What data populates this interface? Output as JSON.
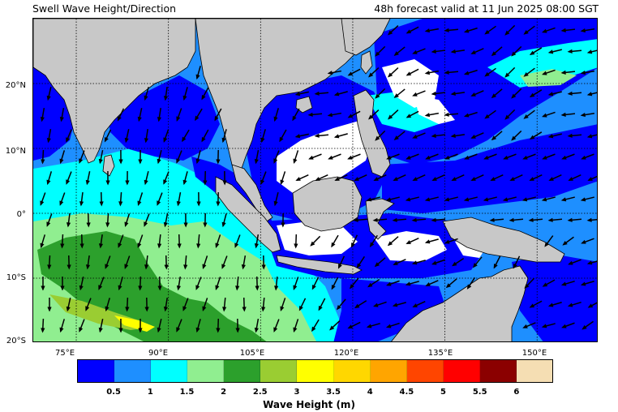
{
  "header": {
    "title_left": "Swell Wave Height/Direction",
    "title_right": "48h forecast valid at 11 Jun 2025 08:00 SGT"
  },
  "map": {
    "lon_range": [
      68,
      160
    ],
    "lat_range": [
      -20,
      30
    ],
    "lat_labels": [
      "20°N",
      "10°N",
      "0°",
      "10°S",
      "20°S"
    ],
    "lat_values": [
      20,
      10,
      0,
      -10,
      -20
    ],
    "lon_labels": [
      "75°E",
      "90°E",
      "105°E",
      "120°E",
      "135°E",
      "150°E"
    ],
    "lon_values": [
      75,
      90,
      105,
      120,
      135,
      150
    ],
    "land_color": "#c8c8c8",
    "calm_color": "#ffffff",
    "arrow_color": "#000000"
  },
  "colorbar": {
    "label": "Wave Height (m)",
    "ticks": [
      "0.5",
      "1",
      "1.5",
      "2",
      "2.5",
      "3",
      "3.5",
      "4",
      "4.5",
      "5",
      "5.5",
      "6"
    ],
    "colors": [
      "#0000ff",
      "#1e8fff",
      "#00ffff",
      "#90ee90",
      "#2ca02c",
      "#9acd32",
      "#ffff00",
      "#ffd700",
      "#ffa500",
      "#ff4500",
      "#ff0000",
      "#8b0000",
      "#f5deb3"
    ]
  }
}
